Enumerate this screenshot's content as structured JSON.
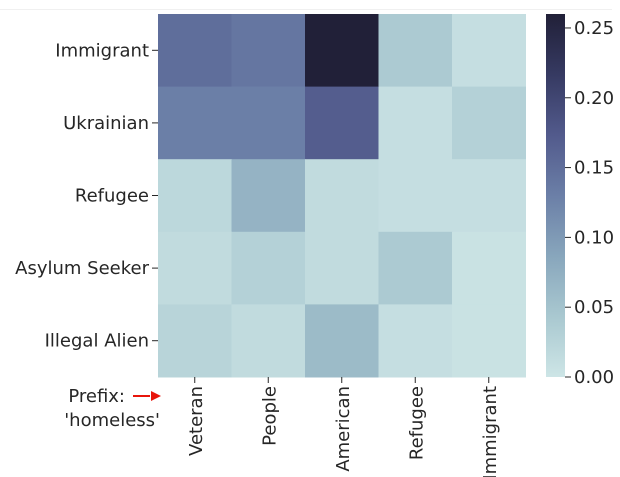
{
  "chart_data": {
    "type": "heatmap",
    "rows": [
      "Immigrant",
      "Ukrainian",
      "Refugee",
      "Asylum Seeker",
      "Illegal Alien"
    ],
    "columns": [
      "Veteran",
      "People",
      "American",
      "Refugee",
      "Immigrant"
    ],
    "values": [
      [
        0.15,
        0.14,
        0.26,
        0.04,
        0.01
      ],
      [
        0.13,
        0.13,
        0.17,
        0.01,
        0.03
      ],
      [
        0.02,
        0.07,
        0.015,
        0.01,
        0.01
      ],
      [
        0.015,
        0.03,
        0.015,
        0.04,
        0.005
      ],
      [
        0.025,
        0.015,
        0.06,
        0.01,
        0.005
      ]
    ],
    "colorbar": {
      "min": 0.0,
      "max": 0.26,
      "ticks": [
        "0.00",
        "0.05",
        "0.10",
        "0.15",
        "0.20",
        "0.25"
      ],
      "colors": [
        "#cde5e6",
        "#a9c8d0",
        "#88a6bc",
        "#6b7fa7",
        "#525a8c",
        "#363a62",
        "#212038"
      ]
    },
    "prefix_label": [
      "Prefix:",
      "'homeless'"
    ],
    "arrow_color": "#e8150b"
  }
}
